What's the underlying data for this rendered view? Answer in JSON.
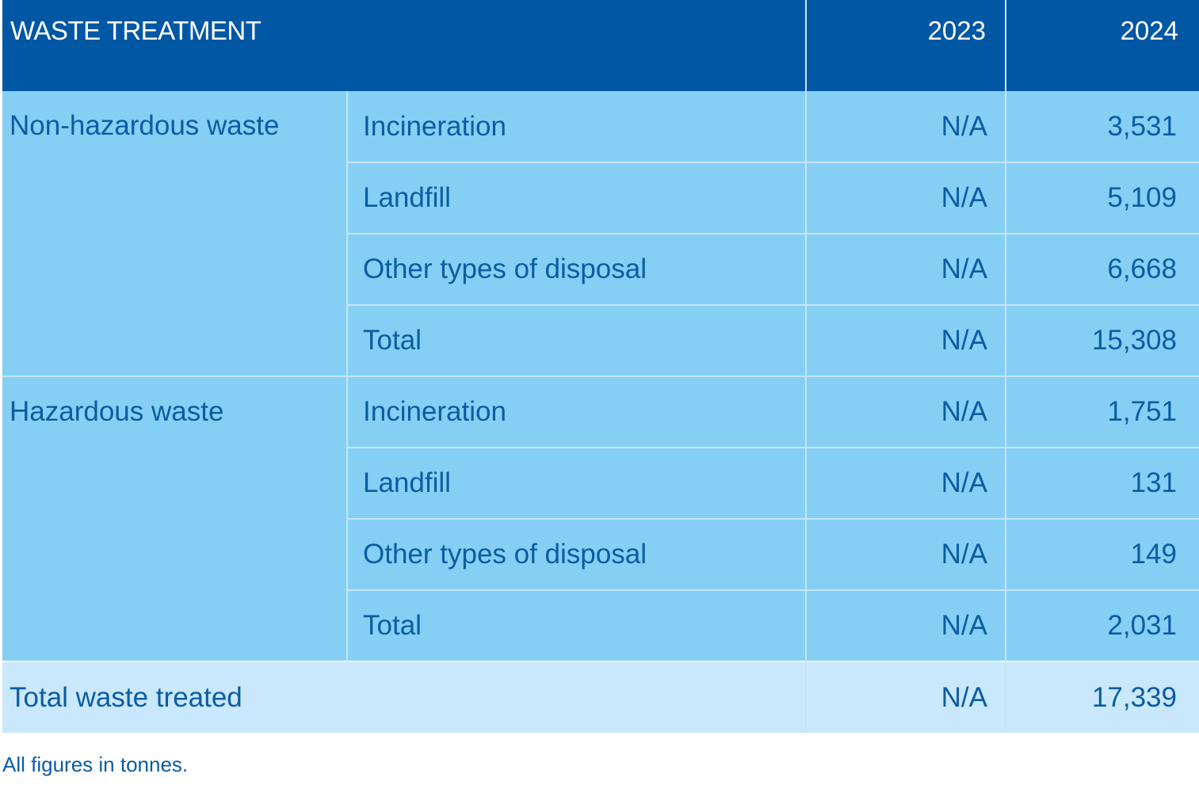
{
  "table": {
    "header": {
      "title": "WASTE TREATMENT",
      "years": [
        "2023",
        "2024"
      ]
    },
    "groups": [
      {
        "name": "Non-hazardous waste",
        "rows": [
          {
            "method": "Incineration",
            "y2023": "N/A",
            "y2024": "3,531"
          },
          {
            "method": "Landfill",
            "y2023": "N/A",
            "y2024": "5,109"
          },
          {
            "method": "Other types of disposal",
            "y2023": "N/A",
            "y2024": "6,668"
          },
          {
            "method": "Total",
            "y2023": "N/A",
            "y2024": "15,308"
          }
        ]
      },
      {
        "name": "Hazardous waste",
        "rows": [
          {
            "method": "Incineration",
            "y2023": "N/A",
            "y2024": "1,751"
          },
          {
            "method": "Landfill",
            "y2023": "N/A",
            "y2024": "131"
          },
          {
            "method": "Other types of disposal",
            "y2023": "N/A",
            "y2024": "149"
          },
          {
            "method": "Total",
            "y2023": "N/A",
            "y2024": "2,031"
          }
        ]
      }
    ],
    "grand_total": {
      "label": "Total waste treated",
      "y2023": "N/A",
      "y2024": "17,339"
    }
  },
  "note": "All figures in tonnes.",
  "colors": {
    "header_bg": "#0057a4",
    "header_text": "#ffffff",
    "body_bg": "#85cff4",
    "total_row_bg": "#c9e8fb",
    "body_text": "#0b5ca3"
  }
}
